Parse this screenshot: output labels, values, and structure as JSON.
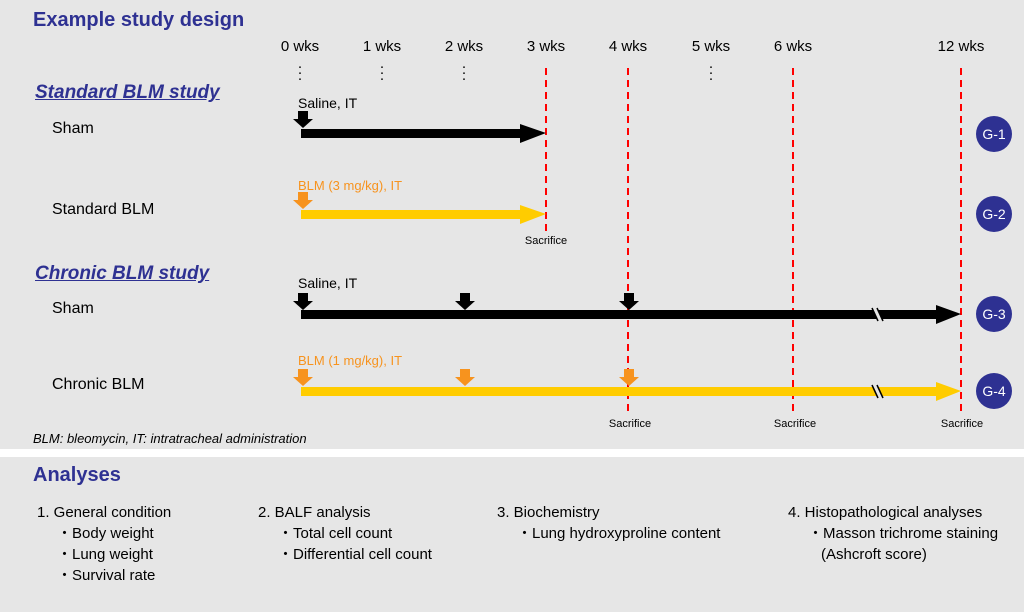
{
  "study_title": "Example study design",
  "weeks": [
    "0 wks",
    "1 wks",
    "2 wks",
    "3 wks",
    "4 wks",
    "5 wks",
    "6 wks",
    "12 wks"
  ],
  "standard_section": {
    "title": "Standard BLM study",
    "sham": {
      "label": "Sham",
      "dose": "Saline, IT",
      "badge": "G-1"
    },
    "blm": {
      "label": "Standard BLM",
      "dose": "BLM (3 mg/kg), IT",
      "badge": "G-2"
    },
    "sacrifice": "Sacrifice"
  },
  "chronic_section": {
    "title": "Chronic BLM study",
    "sham": {
      "label": "Sham",
      "dose": "Saline, IT",
      "badge": "G-3"
    },
    "blm": {
      "label": "Chronic BLM",
      "dose": "BLM (1 mg/kg), IT",
      "badge": "G-4"
    },
    "sacrifice_labels": [
      "Sacrifice",
      "Sacrifice",
      "Sacrifice"
    ]
  },
  "abbreviation_note": "BLM: bleomycin, IT: intratracheal administration",
  "analyses": {
    "title": "Analyses",
    "columns": [
      {
        "heading": "1. General condition",
        "items": [
          "・Body weight",
          "・Lung weight",
          "・Survival rate"
        ]
      },
      {
        "heading": "2. BALF analysis",
        "items": [
          "・Total cell count",
          "・Differential cell count"
        ]
      },
      {
        "heading": "3. Biochemistry",
        "items": [
          "・Lung hydroxyproline content"
        ]
      },
      {
        "heading": "4. Histopathological analyses",
        "items": [
          "・Masson trichrome staining",
          "(Ashcroft score)"
        ]
      }
    ]
  },
  "colors": {
    "title": "#2e3192",
    "sham_bar": "#000000",
    "blm_bar": "#ffcc00",
    "blm_arrow": "#f7931e",
    "sacrifice_line": "#ff0000",
    "badge": "#2e3192"
  }
}
